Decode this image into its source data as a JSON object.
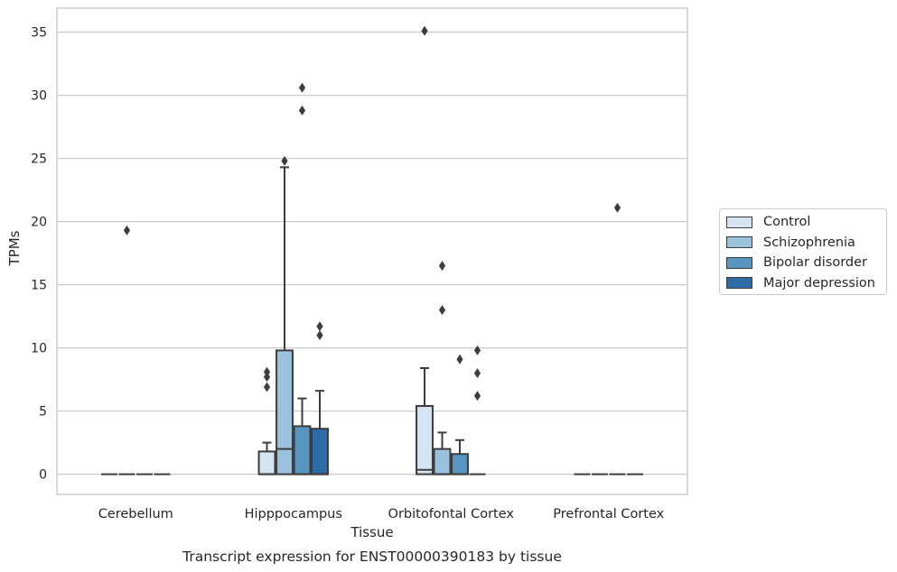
{
  "chart_data": {
    "type": "box",
    "title": "",
    "caption": "Transcript expression for ENST00000390183 by tissue",
    "xlabel": "Tissue",
    "ylabel": "TPMs",
    "ylim": [
      -1.6,
      36.9
    ],
    "yticks": [
      0,
      5,
      10,
      15,
      20,
      25,
      30,
      35
    ],
    "grid": true,
    "legend_position": "right",
    "categories": [
      "Cerebellum",
      "Hipppocampus",
      "Orbitofontal Cortex",
      "Prefrontal Cortex"
    ],
    "series": [
      {
        "name": "Control",
        "color": "#d6e4f1",
        "boxes": [
          {
            "q1": 0,
            "median": 0,
            "q3": 0,
            "whisker_low": 0,
            "whisker_high": 0,
            "outliers": []
          },
          {
            "q1": 0,
            "median": 0,
            "q3": 1.8,
            "whisker_low": 0,
            "whisker_high": 2.5,
            "outliers": [
              6.9,
              7.7,
              8.1
            ]
          },
          {
            "q1": 0,
            "median": 0.35,
            "q3": 5.4,
            "whisker_low": 0,
            "whisker_high": 8.4,
            "outliers": [
              35.1
            ]
          },
          {
            "q1": 0,
            "median": 0,
            "q3": 0,
            "whisker_low": 0,
            "whisker_high": 0,
            "outliers": []
          }
        ]
      },
      {
        "name": "Schizophrenia",
        "color": "#9ac2dc",
        "boxes": [
          {
            "q1": 0,
            "median": 0,
            "q3": 0,
            "whisker_low": 0,
            "whisker_high": 0,
            "outliers": [
              19.3
            ]
          },
          {
            "q1": 0,
            "median": 2.0,
            "q3": 9.8,
            "whisker_low": 0,
            "whisker_high": 24.3,
            "outliers": [
              24.8
            ]
          },
          {
            "q1": 0,
            "median": 0,
            "q3": 2.0,
            "whisker_low": 0,
            "whisker_high": 3.3,
            "outliers": [
              13.0,
              16.5
            ]
          },
          {
            "q1": 0,
            "median": 0,
            "q3": 0,
            "whisker_low": 0,
            "whisker_high": 0,
            "outliers": []
          }
        ]
      },
      {
        "name": "Bipolar disorder",
        "color": "#5895c1",
        "boxes": [
          {
            "q1": 0,
            "median": 0,
            "q3": 0,
            "whisker_low": 0,
            "whisker_high": 0,
            "outliers": []
          },
          {
            "q1": 0,
            "median": 0,
            "q3": 3.8,
            "whisker_low": 0,
            "whisker_high": 6.0,
            "outliers": [
              28.8,
              30.6
            ]
          },
          {
            "q1": 0,
            "median": 0,
            "q3": 1.6,
            "whisker_low": 0,
            "whisker_high": 2.7,
            "outliers": [
              9.1
            ]
          },
          {
            "q1": 0,
            "median": 0,
            "q3": 0,
            "whisker_low": 0,
            "whisker_high": 0,
            "outliers": [
              21.1
            ]
          }
        ]
      },
      {
        "name": "Major depression",
        "color": "#2e6ca7",
        "boxes": [
          {
            "q1": 0,
            "median": 0,
            "q3": 0,
            "whisker_low": 0,
            "whisker_high": 0,
            "outliers": []
          },
          {
            "q1": 0,
            "median": 0,
            "q3": 3.6,
            "whisker_low": 0,
            "whisker_high": 6.6,
            "outliers": [
              11.0,
              11.7
            ]
          },
          {
            "q1": 0,
            "median": 0,
            "q3": 0,
            "whisker_low": 0,
            "whisker_high": 0,
            "outliers": [
              6.2,
              8.0,
              9.8
            ]
          },
          {
            "q1": 0,
            "median": 0,
            "q3": 0,
            "whisker_low": 0,
            "whisker_high": 0,
            "outliers": []
          }
        ]
      }
    ]
  }
}
